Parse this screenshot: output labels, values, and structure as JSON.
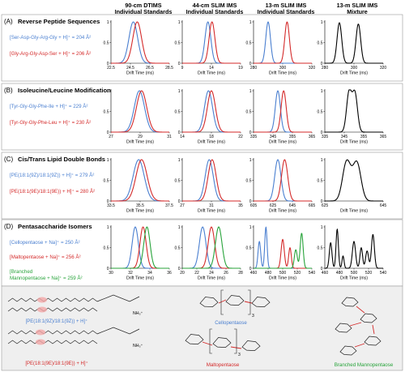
{
  "colors": {
    "blue": "#4a7fd0",
    "red": "#d42a2a",
    "green": "#27a33a",
    "black": "#000000",
    "frame": "#999999",
    "band": "#efefef",
    "highlight": "#f2a6a6"
  },
  "column_headers": [
    {
      "line1": "90-cm DTIMS",
      "line2": "Individual Standards"
    },
    {
      "line1": "44-cm SLIM IMS",
      "line2": "Individual Standards"
    },
    {
      "line1": "13-m SLIM IMS",
      "line2": "Individual Standards"
    },
    {
      "line1": "13-m SLIM IMS",
      "line2": "Mixture"
    }
  ],
  "sections": [
    {
      "label": "(A)",
      "title": "Reverse Peptide Sequences",
      "compounds": [
        {
          "lines": [
            "[Ser-Asp-Gly-Arg-Gly + H]⁺ = 204 Å²"
          ],
          "color": "blue"
        },
        {
          "lines": [
            "[Gly-Arg-Gly-Asp-Ser + H]⁺ = 206 Å²"
          ],
          "color": "red"
        }
      ]
    },
    {
      "label": "(B)",
      "title": "Isoleucine/Leucine Modification",
      "compounds": [
        {
          "lines": [
            "[Tyr-Gly-Gly-Phe-Ile + H]⁺ = 229 Å²"
          ],
          "color": "blue"
        },
        {
          "lines": [
            "[Tyr-Gly-Gly-Phe-Leu + H]⁺ = 230 Å²"
          ],
          "color": "red"
        }
      ]
    },
    {
      "label": "(C)",
      "title": "Cis/Trans Lipid Double Bonds",
      "compounds": [
        {
          "lines": [
            "[PE(18:1(9Z)/18:1(9Z)) + H]⁺ = 279 Å²"
          ],
          "color": "blue"
        },
        {
          "lines": [
            "[PE(18:1(9E)/18:1(9E)) + H]⁺ = 280 Å²"
          ],
          "color": "red"
        }
      ]
    },
    {
      "label": "(D)",
      "title": "Pentasaccharide Isomers",
      "compounds": [
        {
          "lines": [
            "[Cellopentaose + Na]⁺ = 250 Å²"
          ],
          "color": "blue"
        },
        {
          "lines": [
            "[Maltopentaose + Na]⁺ = 256 Å²"
          ],
          "color": "red"
        },
        {
          "lines": [
            "[Branched",
            "Mannopentaose + Na]⁺ = 259 Å²"
          ],
          "color": "green"
        }
      ]
    }
  ],
  "axis": {
    "y_ticks": [
      "0",
      "0.5",
      "1"
    ],
    "xlabel": "Drift Time (ms)"
  },
  "chart_data": [
    {
      "type": "line",
      "row": "A",
      "col": 1,
      "xlim": [
        22.5,
        28.5
      ],
      "xticks": [
        "22.5",
        "24.5",
        "26.5",
        "28.5"
      ],
      "ylim": [
        0,
        1
      ],
      "xlabel": "Drift Time (ms)",
      "series": [
        {
          "color": "blue",
          "peaks": [
            [
              24.8,
              0.45,
              1
            ]
          ]
        },
        {
          "color": "red",
          "peaks": [
            [
              25.2,
              0.45,
              1
            ]
          ]
        }
      ]
    },
    {
      "type": "line",
      "row": "A",
      "col": 2,
      "xlim": [
        9,
        19
      ],
      "xticks": [
        "9",
        "14",
        "19"
      ],
      "ylim": [
        0,
        1
      ],
      "xlabel": "Drift Time (ms)",
      "series": [
        {
          "color": "blue",
          "peaks": [
            [
              13.4,
              0.5,
              1
            ]
          ]
        },
        {
          "color": "red",
          "peaks": [
            [
              14.1,
              0.5,
              1
            ]
          ]
        }
      ]
    },
    {
      "type": "line",
      "row": "A",
      "col": 3,
      "xlim": [
        280,
        320
      ],
      "xticks": [
        "280",
        "300",
        "320"
      ],
      "ylim": [
        0,
        1
      ],
      "xlabel": "Drift Time (ms)",
      "series": [
        {
          "color": "blue",
          "peaks": [
            [
              290,
              1.6,
              1
            ]
          ]
        },
        {
          "color": "red",
          "peaks": [
            [
              303,
              1.6,
              1
            ]
          ]
        }
      ]
    },
    {
      "type": "line",
      "row": "A",
      "col": 4,
      "xlim": [
        280,
        320
      ],
      "xticks": [
        "280",
        "300",
        "320"
      ],
      "ylim": [
        0,
        1
      ],
      "xlabel": "Drift Time (ms)",
      "series": [
        {
          "color": "black",
          "peaks": [
            [
              290,
              1.6,
              0.98
            ],
            [
              303,
              1.6,
              0.95
            ]
          ]
        }
      ]
    },
    {
      "type": "line",
      "row": "B",
      "col": 1,
      "xlim": [
        27,
        31
      ],
      "xticks": [
        "27",
        "29",
        "31"
      ],
      "ylim": [
        0,
        1
      ],
      "xlabel": "Drift Time (ms)",
      "series": [
        {
          "color": "blue",
          "peaks": [
            [
              28.95,
              0.35,
              1
            ]
          ]
        },
        {
          "color": "red",
          "peaks": [
            [
              29.1,
              0.35,
              1
            ]
          ]
        }
      ]
    },
    {
      "type": "line",
      "row": "B",
      "col": 2,
      "xlim": [
        14,
        22
      ],
      "xticks": [
        "14",
        "18",
        "22"
      ],
      "ylim": [
        0,
        1
      ],
      "xlabel": "Drift Time (ms)",
      "series": [
        {
          "color": "blue",
          "peaks": [
            [
              17.6,
              0.55,
              1
            ]
          ]
        },
        {
          "color": "red",
          "peaks": [
            [
              18.0,
              0.55,
              1
            ]
          ]
        }
      ]
    },
    {
      "type": "line",
      "row": "B",
      "col": 3,
      "xlim": [
        335,
        365
      ],
      "xticks": [
        "335",
        "345",
        "355",
        "365"
      ],
      "ylim": [
        0,
        1
      ],
      "xlabel": "Drift Time (ms)",
      "series": [
        {
          "color": "blue",
          "peaks": [
            [
              347.5,
              1.3,
              1
            ]
          ]
        },
        {
          "color": "red",
          "peaks": [
            [
              350.5,
              1.3,
              1
            ]
          ]
        }
      ]
    },
    {
      "type": "line",
      "row": "B",
      "col": 4,
      "xlim": [
        335,
        365
      ],
      "xticks": [
        "335",
        "345",
        "355",
        "365"
      ],
      "ylim": [
        0,
        1
      ],
      "xlabel": "Drift Time (ms)",
      "series": [
        {
          "color": "black",
          "peaks": [
            [
              347.5,
              1.3,
              0.97
            ],
            [
              350.5,
              1.3,
              0.93
            ]
          ]
        }
      ]
    },
    {
      "type": "line",
      "row": "C",
      "col": 1,
      "xlim": [
        33.5,
        37.5
      ],
      "xticks": [
        "33.5",
        "35.5",
        "37.5"
      ],
      "ylim": [
        0,
        1
      ],
      "xlabel": "Drift Time (ms)",
      "series": [
        {
          "color": "blue",
          "peaks": [
            [
              35.4,
              0.38,
              1
            ]
          ]
        },
        {
          "color": "red",
          "peaks": [
            [
              35.6,
              0.38,
              1
            ]
          ]
        }
      ]
    },
    {
      "type": "line",
      "row": "C",
      "col": 2,
      "xlim": [
        27,
        35
      ],
      "xticks": [
        "27",
        "31",
        "35"
      ],
      "ylim": [
        0,
        1
      ],
      "xlabel": "Drift Time (ms)",
      "series": [
        {
          "color": "blue",
          "peaks": [
            [
              30.7,
              0.55,
              1
            ]
          ]
        },
        {
          "color": "red",
          "peaks": [
            [
              31.1,
              0.55,
              1
            ]
          ]
        }
      ]
    },
    {
      "type": "line",
      "row": "C",
      "col": 3,
      "xlim": [
        605,
        665
      ],
      "xticks": [
        "605",
        "625",
        "645",
        "665"
      ],
      "ylim": [
        0,
        1
      ],
      "xlabel": "Drift Time (ms)",
      "series": [
        {
          "color": "blue",
          "peaks": [
            [
              630,
              3.2,
              1
            ]
          ]
        },
        {
          "color": "red",
          "peaks": [
            [
              637,
              3.2,
              1
            ]
          ]
        }
      ]
    },
    {
      "type": "line",
      "row": "C",
      "col": 4,
      "xlim": [
        625,
        645
      ],
      "xticks": [
        "625",
        "645"
      ],
      "ylim": [
        0,
        1
      ],
      "xlabel": "Drift Time (ms)",
      "series": [
        {
          "color": "black",
          "peaks": [
            [
              632.5,
              1.4,
              0.95
            ],
            [
              636,
              1.4,
              0.92
            ]
          ]
        }
      ]
    },
    {
      "type": "line",
      "row": "D",
      "col": 1,
      "xlim": [
        30,
        36
      ],
      "xticks": [
        "30",
        "32",
        "34",
        "36"
      ],
      "ylim": [
        0,
        1
      ],
      "xlabel": "Drift Time (ms)",
      "series": [
        {
          "color": "blue",
          "peaks": [
            [
              32.5,
              0.32,
              1
            ]
          ]
        },
        {
          "color": "red",
          "peaks": [
            [
              33.3,
              0.32,
              1
            ]
          ]
        },
        {
          "color": "green",
          "peaks": [
            [
              33.7,
              0.32,
              1
            ]
          ]
        }
      ]
    },
    {
      "type": "line",
      "row": "D",
      "col": 2,
      "xlim": [
        20,
        28
      ],
      "xticks": [
        "20",
        "22",
        "24",
        "26",
        "28"
      ],
      "ylim": [
        0,
        1
      ],
      "xlabel": "Drift Time (ms)",
      "series": [
        {
          "color": "blue",
          "peaks": [
            [
              22.8,
              0.45,
              1
            ]
          ]
        },
        {
          "color": "red",
          "peaks": [
            [
              24.0,
              0.45,
              1
            ]
          ]
        },
        {
          "color": "green",
          "peaks": [
            [
              25.0,
              0.45,
              1
            ]
          ]
        }
      ]
    },
    {
      "type": "line",
      "row": "D",
      "col": 3,
      "xlim": [
        460,
        540
      ],
      "xticks": [
        "460",
        "480",
        "500",
        "520",
        "540"
      ],
      "ylim": [
        0,
        1
      ],
      "xlabel": "Drift Time (ms)",
      "series": [
        {
          "color": "blue",
          "peaks": [
            [
              468,
              1.8,
              0.65
            ],
            [
              477,
              1.6,
              1
            ]
          ]
        },
        {
          "color": "red",
          "peaks": [
            [
              500,
              2.2,
              0.7
            ],
            [
              510,
              1.8,
              0.5
            ]
          ]
        },
        {
          "color": "green",
          "peaks": [
            [
              518,
              2.0,
              0.45
            ],
            [
              526,
              2.0,
              0.85
            ]
          ]
        }
      ]
    },
    {
      "type": "line",
      "row": "D",
      "col": 4,
      "xlim": [
        460,
        540
      ],
      "xticks": [
        "460",
        "480",
        "500",
        "520",
        "540"
      ],
      "ylim": [
        0,
        1
      ],
      "xlabel": "Drift Time (ms)",
      "series": [
        {
          "color": "black",
          "peaks": [
            [
              468,
              1.8,
              0.62
            ],
            [
              477,
              1.6,
              0.95
            ],
            [
              485,
              1.4,
              0.3
            ],
            [
              500,
              2.2,
              0.65
            ],
            [
              510,
              1.8,
              0.5
            ],
            [
              518,
              2.0,
              0.42
            ],
            [
              526,
              2.0,
              0.82
            ]
          ]
        }
      ]
    }
  ],
  "structures": {
    "lipid_label_cis": "[PE(18:1(9Z)/18:1(9Z)) + H]⁺",
    "lipid_label_trans": "[PE(18:1(9E)/18:1(9E)) + H]⁺",
    "cellopentaose": "Cellopentaose",
    "maltopentaose": "Maltopentaose",
    "branched": "Branched Mannopentaose",
    "repeat": "3",
    "nh3": "NH₃⁺"
  }
}
